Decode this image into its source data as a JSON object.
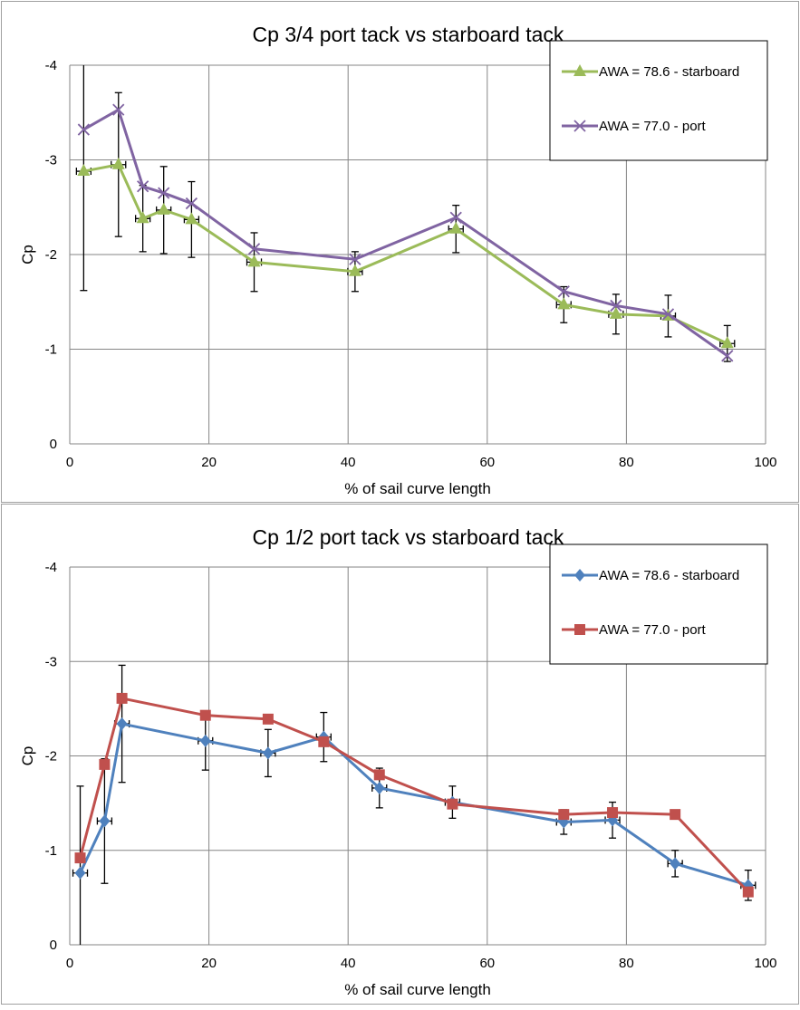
{
  "chart_data": [
    {
      "type": "line",
      "title": "Cp 3/4 port tack vs starboard tack",
      "xlabel": "% of sail curve length",
      "ylabel": "Cp",
      "xlim": [
        0,
        100
      ],
      "ylim": [
        0,
        -4
      ],
      "y_axis_reversed": true,
      "xticks": [
        "0",
        "20",
        "40",
        "60",
        "80",
        "100"
      ],
      "yticks": [
        "-4",
        "-3",
        "-2",
        "-1",
        "0"
      ],
      "grid": true,
      "legend_position": "top-right",
      "series": [
        {
          "name": "AWA = 78.6 - starboard",
          "color": "#9BBB59",
          "marker": "triangle",
          "x": [
            2,
            7,
            10.5,
            13.5,
            17.5,
            26.5,
            41,
            55.5,
            71,
            78.5,
            86,
            94.5
          ],
          "y": [
            -2.88,
            -2.95,
            -2.38,
            -2.47,
            -2.37,
            -1.92,
            -1.82,
            -2.27,
            -1.47,
            -1.37,
            -1.35,
            -1.06
          ],
          "err": [
            1.26,
            0.76,
            0.35,
            0.46,
            0.4,
            0.31,
            0.21,
            0.25,
            0.19,
            0.21,
            0.22,
            0.19
          ]
        },
        {
          "name": "AWA = 77.0 - port",
          "color": "#8064A2",
          "marker": "x",
          "x": [
            2,
            7,
            10.5,
            13.5,
            17.5,
            26.5,
            41,
            55.5,
            71,
            78.5,
            86,
            94.5
          ],
          "y": [
            -3.32,
            -3.53,
            -2.72,
            -2.65,
            -2.54,
            -2.06,
            -1.95,
            -2.39,
            -1.61,
            -1.46,
            -1.37,
            -0.93
          ],
          "err": []
        }
      ]
    },
    {
      "type": "line",
      "title": "Cp 1/2 port tack vs starboard tack",
      "xlabel": "% of sail curve length",
      "ylabel": "Cp",
      "xlim": [
        0,
        100
      ],
      "ylim": [
        0,
        -4
      ],
      "y_axis_reversed": true,
      "xticks": [
        "0",
        "20",
        "40",
        "60",
        "80",
        "100"
      ],
      "yticks": [
        "-4",
        "-3",
        "-2",
        "-1",
        "0"
      ],
      "grid": true,
      "legend_position": "top-right",
      "series": [
        {
          "name": "AWA = 78.6 - starboard",
          "color": "#4F81BD",
          "marker": "diamond",
          "x": [
            1.5,
            5,
            7.5,
            19.5,
            28.5,
            36.5,
            44.5,
            55,
            71,
            78,
            87,
            97.5
          ],
          "y": [
            -0.76,
            -1.31,
            -2.34,
            -2.16,
            -2.03,
            -2.2,
            -1.66,
            -1.51,
            -1.3,
            -1.32,
            -0.86,
            -0.63
          ],
          "err": [
            0.92,
            0.66,
            0.62,
            0.31,
            0.25,
            0.26,
            0.21,
            0.17,
            0.13,
            0.19,
            0.14,
            0.16
          ]
        },
        {
          "name": "AWA = 77.0 - port",
          "color": "#C0504D",
          "marker": "square",
          "x": [
            1.5,
            5,
            7.5,
            19.5,
            28.5,
            36.5,
            44.5,
            55,
            71,
            78,
            87,
            97.5
          ],
          "y": [
            -0.92,
            -1.91,
            -2.61,
            -2.43,
            -2.39,
            -2.15,
            -1.8,
            -1.49,
            -1.38,
            -1.4,
            -1.38,
            -0.56
          ],
          "err": []
        }
      ]
    }
  ]
}
